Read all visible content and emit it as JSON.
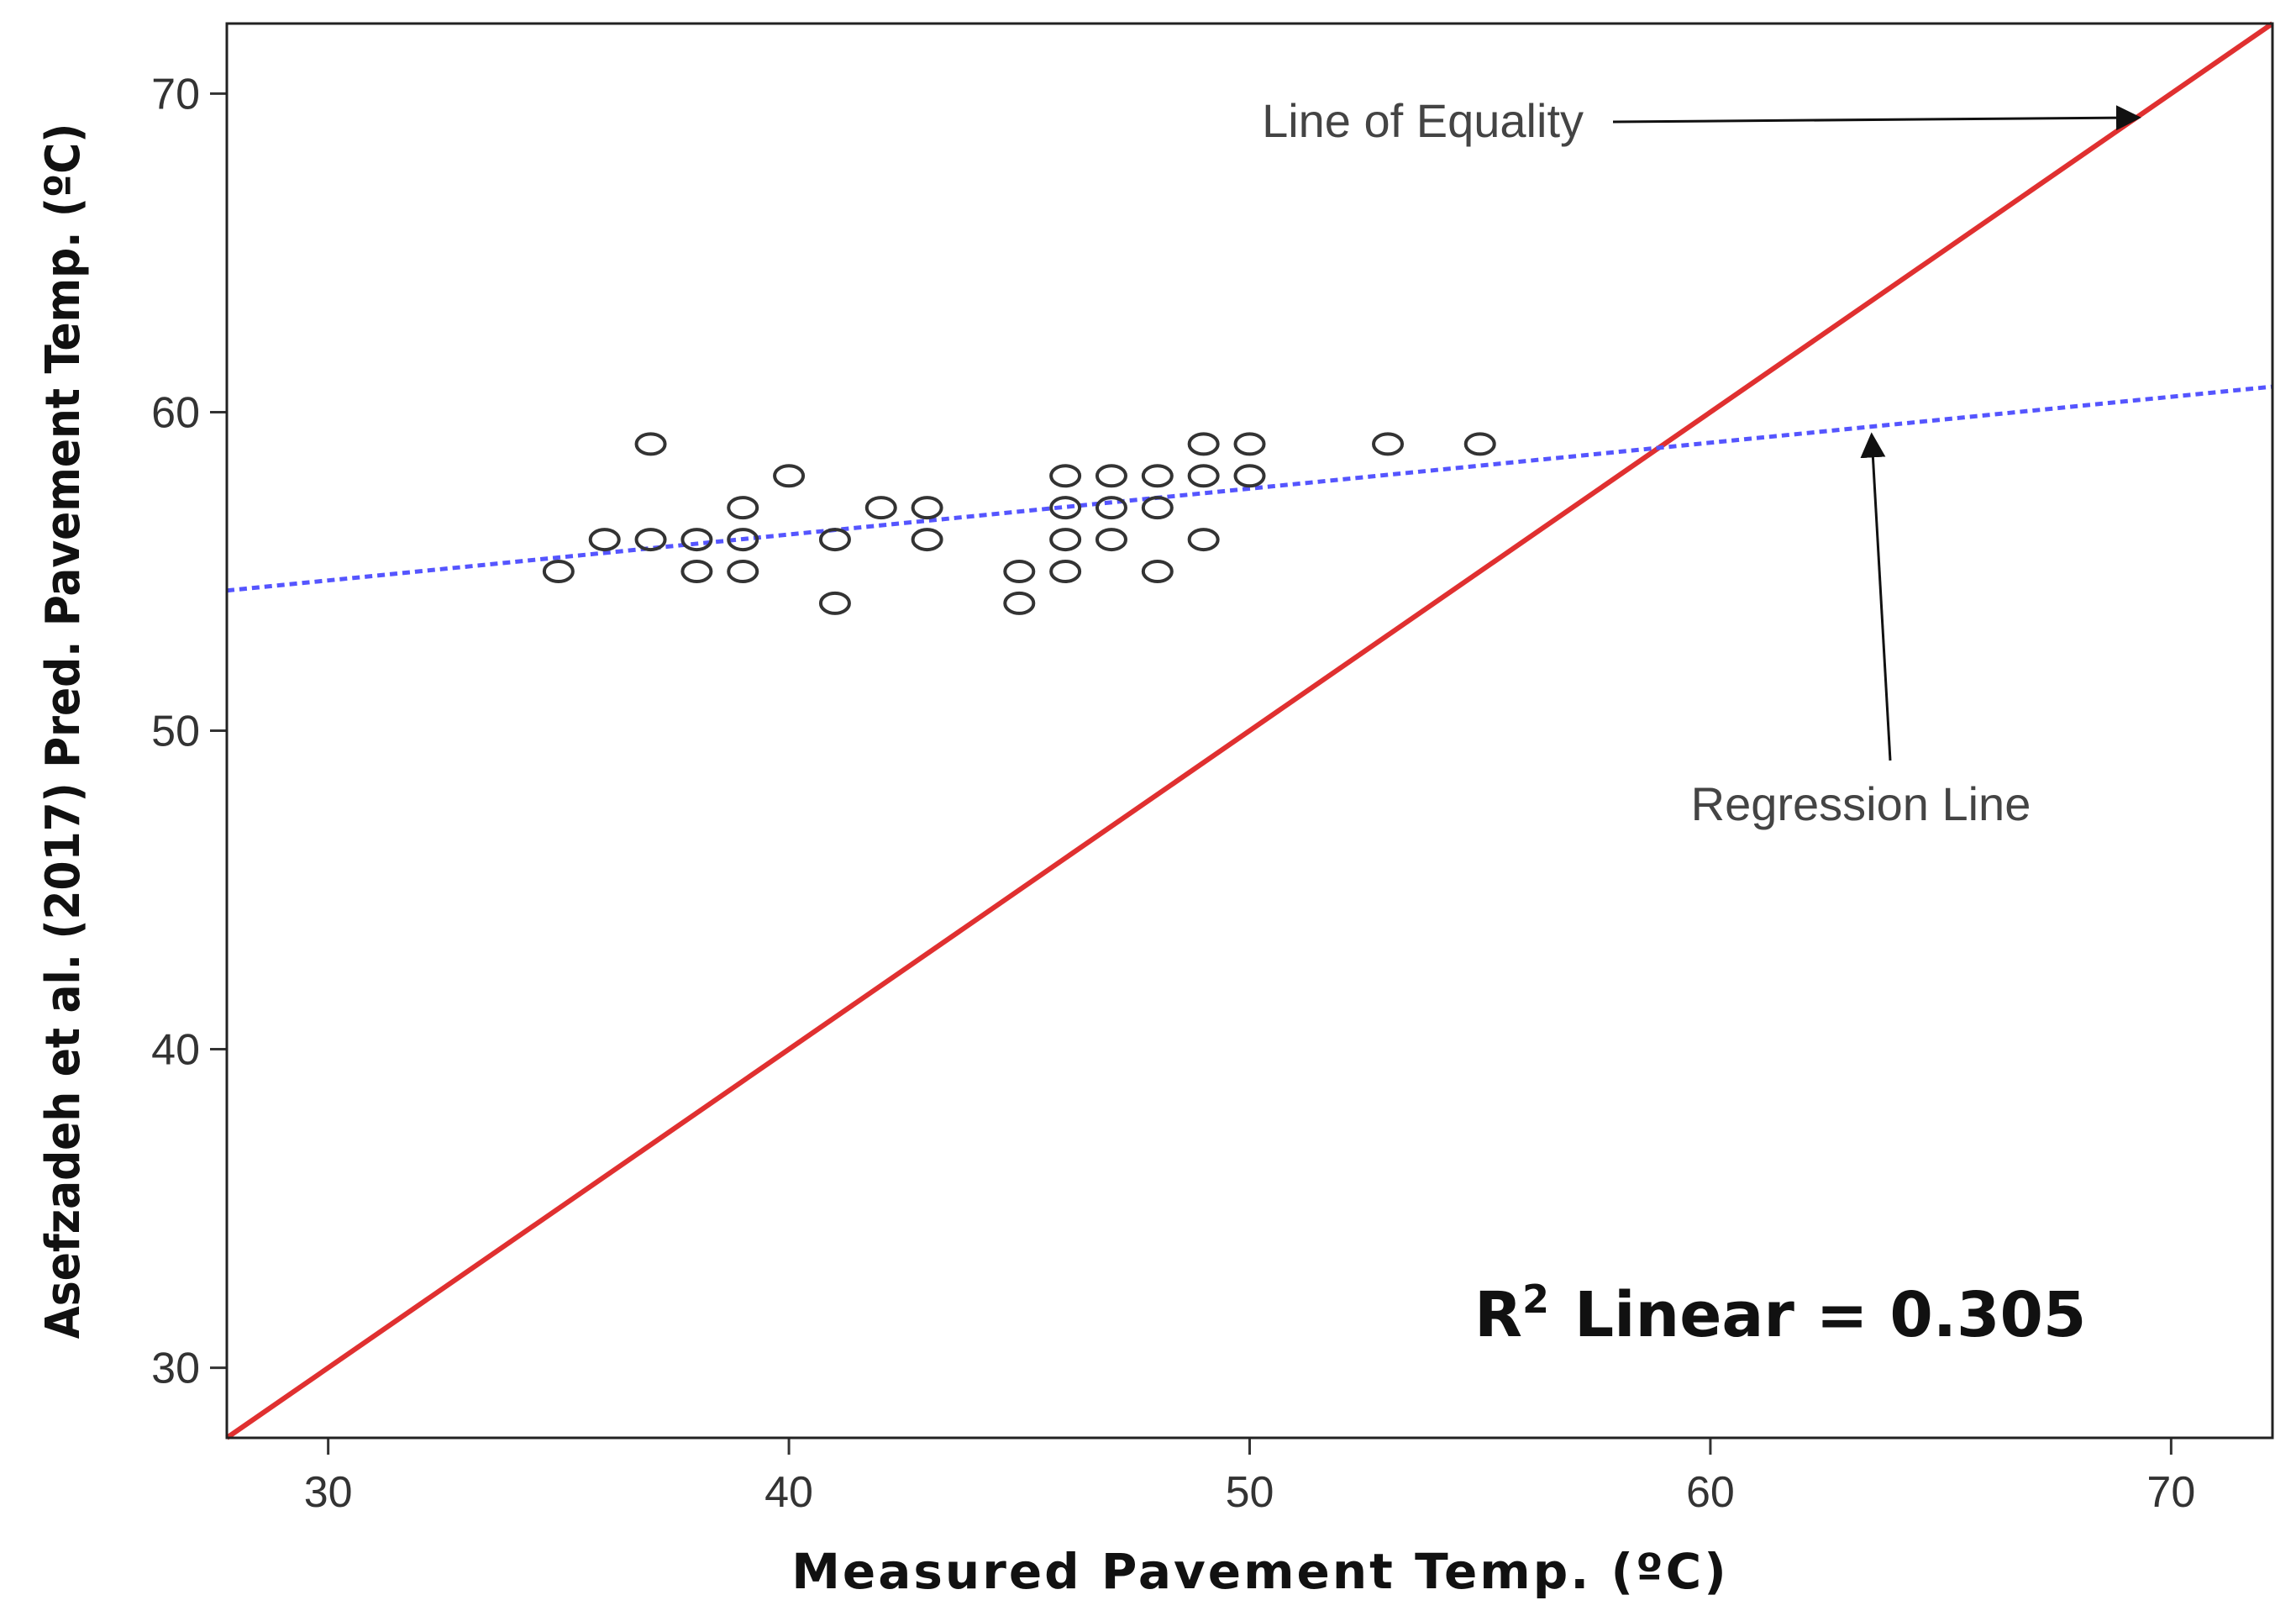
{
  "chart_data": {
    "type": "scatter",
    "xlabel": "Measured Pavement Temp. (ºC)",
    "ylabel": "Asefzadeh et al. (2017) Pred. Pavement Temp. (ºC)",
    "xlim": [
      27.8,
      72.2
    ],
    "ylim": [
      27.8,
      72.2
    ],
    "x_ticks": [
      30,
      40,
      50,
      60,
      70
    ],
    "y_ticks": [
      30,
      40,
      50,
      60,
      70
    ],
    "x_tick_labels": [
      "30",
      "40",
      "50",
      "60",
      "70"
    ],
    "y_tick_labels": [
      "30",
      "40",
      "50",
      "60",
      "70"
    ],
    "grid": false,
    "series": [
      {
        "name": "Observations",
        "marker": "open-circle",
        "color": "#333333",
        "points": [
          [
            35,
            55
          ],
          [
            36,
            56
          ],
          [
            37,
            59
          ],
          [
            37,
            56
          ],
          [
            38,
            56
          ],
          [
            38,
            55
          ],
          [
            39,
            57
          ],
          [
            39,
            56
          ],
          [
            39,
            55
          ],
          [
            40,
            58
          ],
          [
            41,
            56
          ],
          [
            41,
            54
          ],
          [
            42,
            57
          ],
          [
            43,
            57
          ],
          [
            43,
            56
          ],
          [
            45,
            55
          ],
          [
            45,
            54
          ],
          [
            46,
            58
          ],
          [
            46,
            57
          ],
          [
            46,
            56
          ],
          [
            46,
            55
          ],
          [
            47,
            58
          ],
          [
            47,
            57
          ],
          [
            47,
            56
          ],
          [
            48,
            58
          ],
          [
            48,
            57
          ],
          [
            48,
            55
          ],
          [
            49,
            59
          ],
          [
            49,
            58
          ],
          [
            49,
            56
          ],
          [
            50,
            59
          ],
          [
            50,
            58
          ],
          [
            53,
            59
          ],
          [
            55,
            59
          ]
        ]
      }
    ],
    "lines": [
      {
        "name": "Line of Equality",
        "style": "solid",
        "color": "#e03030",
        "from": [
          27.8,
          27.8
        ],
        "to": [
          72.2,
          72.2
        ]
      },
      {
        "name": "Regression Line",
        "style": "dotted",
        "color": "#5555ff",
        "from": [
          27.8,
          54.4
        ],
        "to": [
          72.2,
          60.8
        ]
      }
    ],
    "annotations": [
      {
        "text": "Line of Equality",
        "arrow_to": [
          69.3,
          69.3
        ]
      },
      {
        "text": "Regression Line",
        "arrow_to": [
          63.5,
          59.5
        ]
      }
    ],
    "r2_label": {
      "prefix": "R",
      "superscript": "2",
      "text": "Linear = 0.305",
      "value": 0.305
    }
  }
}
